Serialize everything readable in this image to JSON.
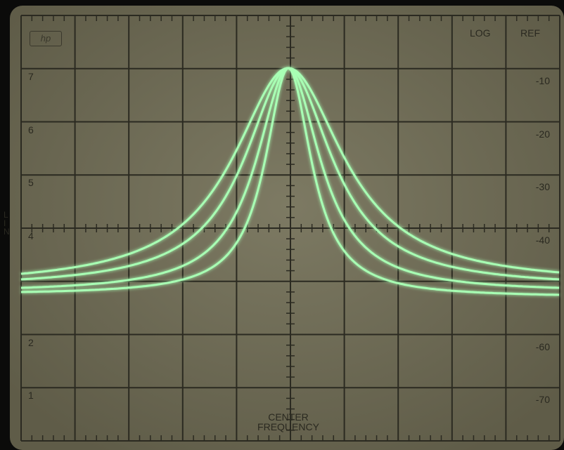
{
  "logo": "hp",
  "top_right_labels": [
    "LOG",
    "REF"
  ],
  "left_labels": [
    "7",
    "6",
    "5",
    "4",
    "2",
    "1"
  ],
  "right_labels": [
    "-10",
    "-20",
    "-30",
    "-40",
    "-60",
    "-70"
  ],
  "side_label": "LIN",
  "bottom_label": [
    "CENTER",
    "FREQUENCY"
  ]
}
